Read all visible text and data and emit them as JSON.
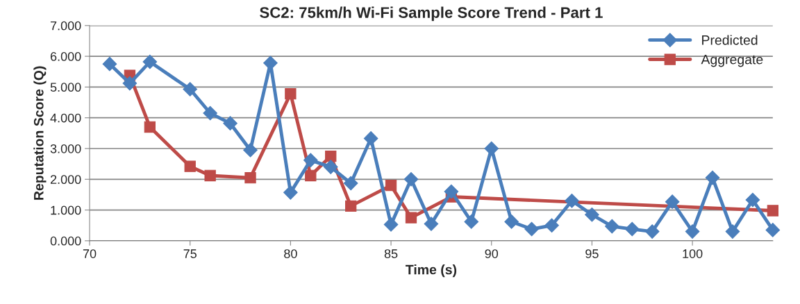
{
  "chart_data": {
    "type": "line",
    "title": "SC2: 75km/h Wi-Fi Sample Score Trend - Part 1",
    "xlabel": "Time (s)",
    "ylabel": "Reputation Score (Q)",
    "series": [
      {
        "name": "Predicted",
        "color": "#4a7ebb",
        "marker": "diamond",
        "x": [
          71,
          72,
          73,
          75,
          76,
          77,
          78,
          79,
          80,
          81,
          82,
          83,
          84,
          85,
          86,
          87,
          88,
          89,
          90,
          91,
          92,
          93,
          94,
          95,
          96,
          97,
          98,
          99,
          100,
          101,
          102,
          103,
          104
        ],
        "values": [
          5.75,
          5.12,
          5.82,
          4.93,
          4.15,
          3.82,
          2.95,
          5.78,
          1.57,
          2.62,
          2.4,
          1.87,
          3.33,
          0.53,
          2.0,
          0.55,
          1.6,
          0.62,
          3.0,
          0.62,
          0.38,
          0.5,
          1.3,
          0.85,
          0.47,
          0.38,
          0.3,
          1.27,
          0.3,
          2.05,
          0.3,
          1.33,
          0.35
        ]
      },
      {
        "name": "Aggregate",
        "color": "#be4b48",
        "marker": "square",
        "x": [
          72,
          73,
          75,
          76,
          78,
          80,
          81,
          82,
          83,
          85,
          86,
          88,
          104
        ],
        "values": [
          5.38,
          3.7,
          2.42,
          2.12,
          2.05,
          4.78,
          2.12,
          2.75,
          1.13,
          1.8,
          0.75,
          1.43,
          0.98
        ]
      }
    ],
    "xlim": [
      70,
      104
    ],
    "xticks": [
      70,
      75,
      80,
      85,
      90,
      95,
      100
    ],
    "ylim": [
      0,
      7
    ],
    "yticks": [
      {
        "value": 0,
        "label": "0.000"
      },
      {
        "value": 1,
        "label": "1.000"
      },
      {
        "value": 2,
        "label": "2.000"
      },
      {
        "value": 3,
        "label": "3.000"
      },
      {
        "value": 4,
        "label": "4.000"
      },
      {
        "value": 5,
        "label": "5.000"
      },
      {
        "value": 6,
        "label": "6.000"
      },
      {
        "value": 7,
        "label": "7.000"
      }
    ],
    "grid": "y",
    "legend": "top right",
    "line_style": "solid"
  }
}
